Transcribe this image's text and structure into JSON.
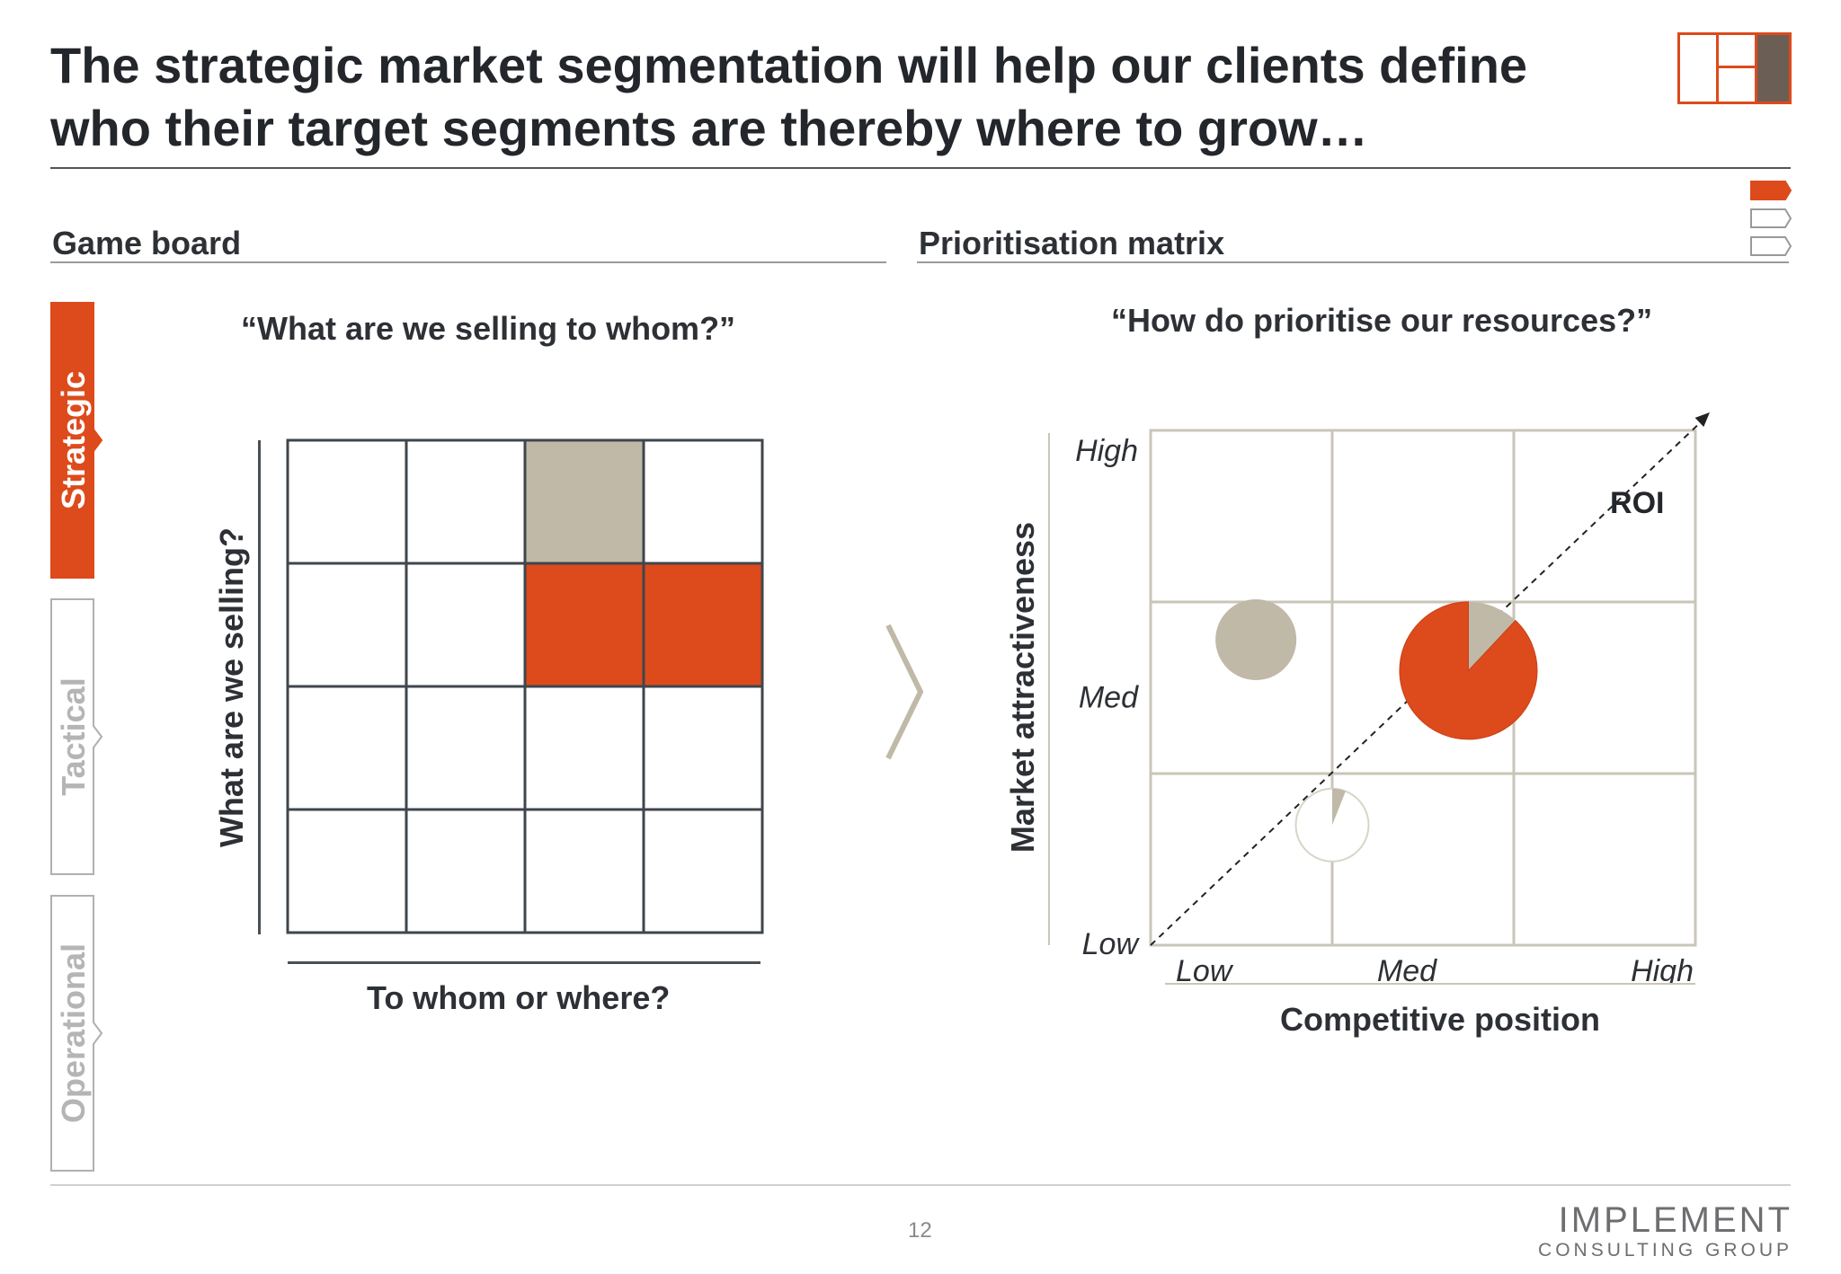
{
  "title": {
    "line1": "The strategic market segmentation will help our clients define",
    "line2": "who their target segments are thereby where to grow…"
  },
  "colors": {
    "accent": "#dd4a1b",
    "beige": "#c0b9a8",
    "dark_brown": "#6b5e54",
    "grid_dark": "#3f464d",
    "grid_light": "#c9c6b8",
    "tab_outline": "#b0b0b0"
  },
  "nav_tabs": [
    {
      "label": "Strategic",
      "active": true
    },
    {
      "label": "Tactical",
      "active": false
    },
    {
      "label": "Operational",
      "active": false
    }
  ],
  "game_board": {
    "section_title": "Game board",
    "question": "“What are we selling to whom?”",
    "y_axis_label": "What are we selling?",
    "x_axis_label": "To whom or where?",
    "grid_rows": 4,
    "grid_cols": 4,
    "highlighted_cells": [
      {
        "row": 0,
        "col": 2,
        "color": "beige"
      },
      {
        "row": 1,
        "col": 2,
        "color": "accent"
      },
      {
        "row": 1,
        "col": 3,
        "color": "accent"
      }
    ]
  },
  "prioritisation_matrix": {
    "section_title": "Prioritisation matrix",
    "question": "“How do prioritise our resources?”",
    "y_axis_label": "Market attractiveness",
    "x_axis_label": "Competitive position",
    "y_ticks": [
      "High",
      "Med",
      "Low"
    ],
    "x_ticks": [
      "Low",
      "Med",
      "High"
    ],
    "arrow_label": "ROI",
    "bubbles": [
      {
        "name": "beige-bubble",
        "x": 0.58,
        "y": 1.78,
        "size": 1.0,
        "filled_share": 0,
        "fill": "beige"
      },
      {
        "name": "large-pie-bubble",
        "x": 1.75,
        "y": 1.6,
        "size": 1.7,
        "filled_share": 0.88,
        "fill": "accent"
      },
      {
        "name": "small-pie-bubble",
        "x": 1.0,
        "y": 0.7,
        "size": 0.9,
        "filled_share": 0.06,
        "fill": "white"
      }
    ]
  },
  "footer": {
    "page_number": "12",
    "brand_name": "IMPLEMENT",
    "brand_sub": "CONSULTING GROUP"
  }
}
